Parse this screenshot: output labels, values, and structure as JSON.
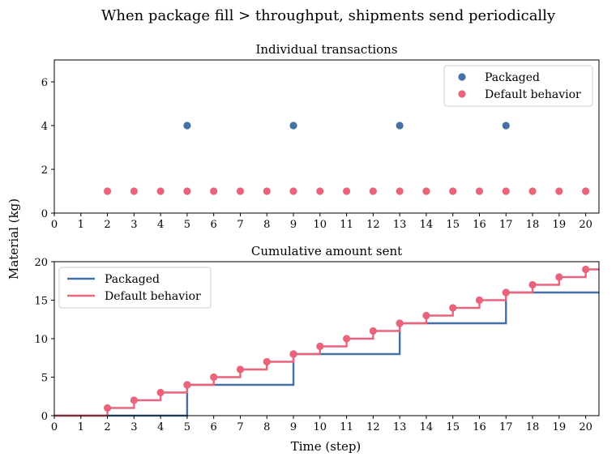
{
  "figure": {
    "suptitle": "When package fill > throughput, shipments send periodically",
    "ylabel": "Material (kg)",
    "xlabel": "Time (step)"
  },
  "colors": {
    "packaged": "#4470a4",
    "default": "#e9647a"
  },
  "chart_data": [
    {
      "type": "scatter",
      "title": "Individual transactions",
      "xlim": [
        0,
        20.5
      ],
      "ylim": [
        0,
        7
      ],
      "xticks": [
        0,
        1,
        2,
        3,
        4,
        5,
        6,
        7,
        8,
        9,
        10,
        11,
        12,
        13,
        14,
        15,
        16,
        17,
        18,
        19,
        20
      ],
      "yticks": [
        0,
        2,
        4,
        6
      ],
      "legend": "top-right",
      "series": [
        {
          "name": "Packaged",
          "x": [
            5,
            9,
            13,
            17
          ],
          "y": [
            4,
            4,
            4,
            4
          ]
        },
        {
          "name": "Default behavior",
          "x": [
            2,
            3,
            4,
            5,
            6,
            7,
            8,
            9,
            10,
            11,
            12,
            13,
            14,
            15,
            16,
            17,
            18,
            19,
            20
          ],
          "y": [
            1,
            1,
            1,
            1,
            1,
            1,
            1,
            1,
            1,
            1,
            1,
            1,
            1,
            1,
            1,
            1,
            1,
            1,
            1
          ]
        }
      ]
    },
    {
      "type": "line",
      "title": "Cumulative amount sent",
      "step": "post",
      "xlim": [
        0,
        20.5
      ],
      "ylim": [
        0,
        20
      ],
      "xticks": [
        0,
        1,
        2,
        3,
        4,
        5,
        6,
        7,
        8,
        9,
        10,
        11,
        12,
        13,
        14,
        15,
        16,
        17,
        18,
        19,
        20
      ],
      "yticks": [
        0,
        5,
        10,
        15,
        20
      ],
      "legend": "top-left",
      "series": [
        {
          "name": "Packaged",
          "x": [
            0,
            5,
            9,
            13,
            17
          ],
          "y": [
            0,
            4,
            8,
            12,
            16
          ],
          "markers_x": [
            5,
            9,
            13,
            17
          ],
          "markers_y": [
            4,
            8,
            12,
            16
          ]
        },
        {
          "name": "Default behavior",
          "x": [
            0,
            2,
            3,
            4,
            5,
            6,
            7,
            8,
            9,
            10,
            11,
            12,
            13,
            14,
            15,
            16,
            17,
            18,
            19,
            20
          ],
          "y": [
            0,
            1,
            2,
            3,
            4,
            5,
            6,
            7,
            8,
            9,
            10,
            11,
            12,
            13,
            14,
            15,
            16,
            17,
            18,
            19
          ],
          "markers_x": [
            2,
            3,
            4,
            5,
            6,
            7,
            8,
            9,
            10,
            11,
            12,
            13,
            14,
            15,
            16,
            17,
            18,
            19,
            20
          ],
          "markers_y": [
            1,
            2,
            3,
            4,
            5,
            6,
            7,
            8,
            9,
            10,
            11,
            12,
            13,
            14,
            15,
            16,
            17,
            18,
            19
          ]
        }
      ]
    }
  ]
}
